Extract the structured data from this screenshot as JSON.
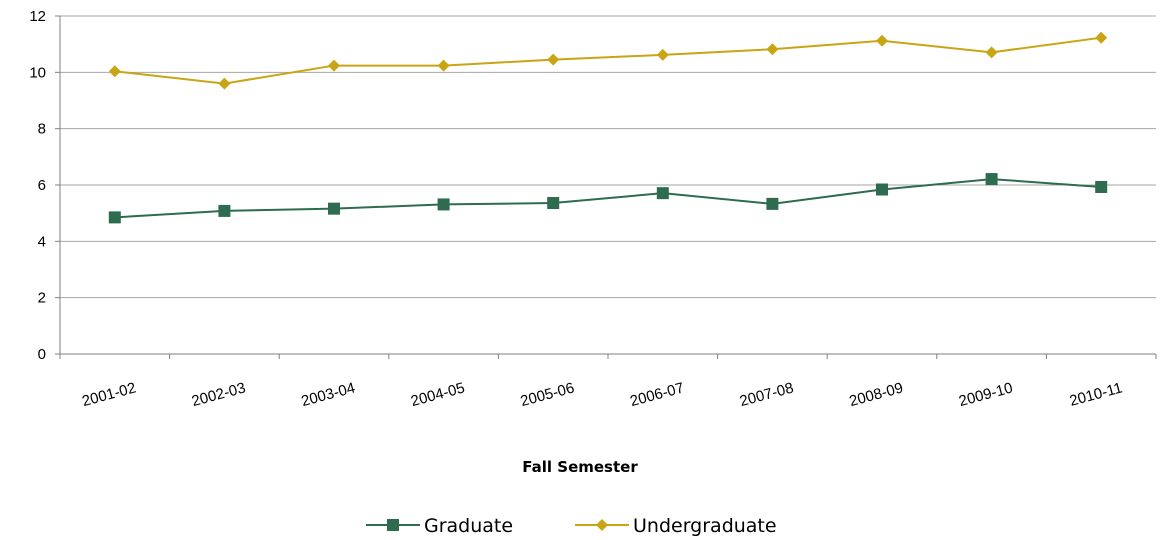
{
  "chart_data": {
    "type": "line",
    "title": "",
    "xlabel": "Fall Semester",
    "ylabel": "",
    "categories": [
      "2001-02",
      "2002-03",
      "2003-04",
      "2004-05",
      "2005-06",
      "2006-07",
      "2007-08",
      "2008-09",
      "2009-10",
      "2010-11"
    ],
    "ylim": [
      0,
      12
    ],
    "yticks": [
      0,
      2,
      4,
      6,
      8,
      10,
      12
    ],
    "grid": true,
    "legend": "bottom",
    "series": [
      {
        "name": "Graduate",
        "color": "#2e6b4f",
        "marker": "square",
        "values": [
          4.85,
          5.08,
          5.16,
          5.31,
          5.36,
          5.71,
          5.33,
          5.84,
          6.21,
          5.93
        ]
      },
      {
        "name": "Undergraduate",
        "color": "#c9a514",
        "marker": "diamond",
        "values": [
          10.04,
          9.6,
          10.24,
          10.24,
          10.45,
          10.62,
          10.82,
          11.12,
          10.71,
          11.23
        ]
      }
    ]
  }
}
